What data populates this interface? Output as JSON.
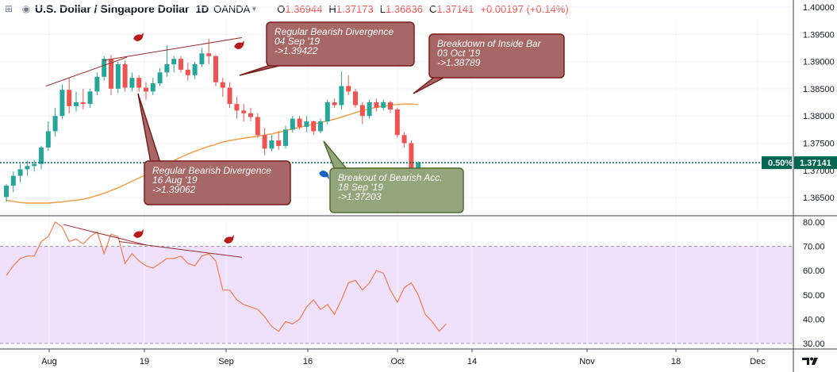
{
  "header": {
    "title": "U.S. Dollar / Singapore Dollar",
    "interval": "1D",
    "broker": "OANDA",
    "open_label": "O",
    "open": "1.36944",
    "high_label": "H",
    "high": "1.37173",
    "low_label": "L",
    "low": "1.36836",
    "close_label": "C",
    "close": "1.37141",
    "change": "+0.00197 (+0.14%)"
  },
  "icons": [
    "expand-icon",
    "eye-icon",
    "chevron-down-icon",
    "bear-icon",
    "bull-icon",
    "tradingview-logo"
  ],
  "colors": {
    "up": "#26a69a",
    "down": "#ef5350",
    "ma": "#f59a3d",
    "rsi": "#f57c4b",
    "rsi_band": "#efe0fb",
    "trendline": "#9c2a2a",
    "price_line": "#006652"
  },
  "chart_data": [
    {
      "type": "candlestick",
      "x_ticks": [
        "Aug",
        "19",
        "Sep",
        "16",
        "Oct",
        "14",
        "Nov",
        "18",
        "Dec"
      ],
      "y_ticks": [
        "1.40000",
        "1.39500",
        "1.39000",
        "1.38500",
        "1.38000",
        "1.37500",
        "1.37000",
        "1.36500"
      ],
      "ylim": [
        1.3615,
        1.4
      ],
      "candles": [
        {
          "o": 1.3651,
          "h": 1.3675,
          "l": 1.3642,
          "c": 1.3672
        },
        {
          "o": 1.3672,
          "h": 1.3698,
          "l": 1.366,
          "c": 1.369
        },
        {
          "o": 1.369,
          "h": 1.3712,
          "l": 1.3678,
          "c": 1.3702
        },
        {
          "o": 1.3702,
          "h": 1.3718,
          "l": 1.369,
          "c": 1.3708
        },
        {
          "o": 1.3708,
          "h": 1.372,
          "l": 1.3698,
          "c": 1.3712
        },
        {
          "o": 1.3712,
          "h": 1.3745,
          "l": 1.3702,
          "c": 1.3742
        },
        {
          "o": 1.3742,
          "h": 1.379,
          "l": 1.3736,
          "c": 1.3772
        },
        {
          "o": 1.3772,
          "h": 1.3815,
          "l": 1.3762,
          "c": 1.38
        },
        {
          "o": 1.38,
          "h": 1.3858,
          "l": 1.3795,
          "c": 1.3848
        },
        {
          "o": 1.3848,
          "h": 1.387,
          "l": 1.3805,
          "c": 1.3818
        },
        {
          "o": 1.3818,
          "h": 1.3845,
          "l": 1.3808,
          "c": 1.3825
        },
        {
          "o": 1.3825,
          "h": 1.385,
          "l": 1.3812,
          "c": 1.3822
        },
        {
          "o": 1.3822,
          "h": 1.385,
          "l": 1.3815,
          "c": 1.3845
        },
        {
          "o": 1.3845,
          "h": 1.388,
          "l": 1.3838,
          "c": 1.3872
        },
        {
          "o": 1.3872,
          "h": 1.391,
          "l": 1.3865,
          "c": 1.3905
        },
        {
          "o": 1.3905,
          "h": 1.3912,
          "l": 1.3838,
          "c": 1.385
        },
        {
          "o": 1.385,
          "h": 1.39,
          "l": 1.3842,
          "c": 1.3895
        },
        {
          "o": 1.3895,
          "h": 1.3902,
          "l": 1.3845,
          "c": 1.3852
        },
        {
          "o": 1.3852,
          "h": 1.388,
          "l": 1.3845,
          "c": 1.387
        },
        {
          "o": 1.387,
          "h": 1.3875,
          "l": 1.3845,
          "c": 1.3852
        },
        {
          "o": 1.3852,
          "h": 1.3862,
          "l": 1.383,
          "c": 1.3845
        },
        {
          "o": 1.3845,
          "h": 1.387,
          "l": 1.3838,
          "c": 1.386
        },
        {
          "o": 1.386,
          "h": 1.3888,
          "l": 1.3855,
          "c": 1.388
        },
        {
          "o": 1.388,
          "h": 1.393,
          "l": 1.3872,
          "c": 1.3895
        },
        {
          "o": 1.3895,
          "h": 1.391,
          "l": 1.388,
          "c": 1.3905
        },
        {
          "o": 1.3905,
          "h": 1.391,
          "l": 1.388,
          "c": 1.3885
        },
        {
          "o": 1.3885,
          "h": 1.3898,
          "l": 1.3865,
          "c": 1.3875
        },
        {
          "o": 1.3875,
          "h": 1.39,
          "l": 1.3868,
          "c": 1.3895
        },
        {
          "o": 1.3895,
          "h": 1.3925,
          "l": 1.389,
          "c": 1.3915
        },
        {
          "o": 1.3915,
          "h": 1.3942,
          "l": 1.3895,
          "c": 1.391
        },
        {
          "o": 1.391,
          "h": 1.3912,
          "l": 1.3855,
          "c": 1.3862
        },
        {
          "o": 1.3862,
          "h": 1.387,
          "l": 1.3835,
          "c": 1.3852
        },
        {
          "o": 1.3852,
          "h": 1.3862,
          "l": 1.3815,
          "c": 1.3822
        },
        {
          "o": 1.3822,
          "h": 1.3835,
          "l": 1.3795,
          "c": 1.381
        },
        {
          "o": 1.381,
          "h": 1.3822,
          "l": 1.379,
          "c": 1.3805
        },
        {
          "o": 1.3805,
          "h": 1.3815,
          "l": 1.379,
          "c": 1.3798
        },
        {
          "o": 1.3798,
          "h": 1.3805,
          "l": 1.376,
          "c": 1.3765
        },
        {
          "o": 1.3765,
          "h": 1.3778,
          "l": 1.3728,
          "c": 1.374
        },
        {
          "o": 1.374,
          "h": 1.3765,
          "l": 1.3735,
          "c": 1.3755
        },
        {
          "o": 1.3755,
          "h": 1.3772,
          "l": 1.3738,
          "c": 1.3745
        },
        {
          "o": 1.3745,
          "h": 1.3782,
          "l": 1.374,
          "c": 1.3775
        },
        {
          "o": 1.3775,
          "h": 1.38,
          "l": 1.377,
          "c": 1.3795
        },
        {
          "o": 1.3795,
          "h": 1.38,
          "l": 1.3775,
          "c": 1.378
        },
        {
          "o": 1.378,
          "h": 1.38,
          "l": 1.377,
          "c": 1.379
        },
        {
          "o": 1.379,
          "h": 1.3792,
          "l": 1.3765,
          "c": 1.3772
        },
        {
          "o": 1.3772,
          "h": 1.3795,
          "l": 1.3768,
          "c": 1.379
        },
        {
          "o": 1.379,
          "h": 1.383,
          "l": 1.3785,
          "c": 1.3825
        },
        {
          "o": 1.3825,
          "h": 1.3832,
          "l": 1.3815,
          "c": 1.382
        },
        {
          "o": 1.382,
          "h": 1.3882,
          "l": 1.3812,
          "c": 1.3855
        },
        {
          "o": 1.3855,
          "h": 1.3875,
          "l": 1.3838,
          "c": 1.3845
        },
        {
          "o": 1.3845,
          "h": 1.385,
          "l": 1.3815,
          "c": 1.382
        },
        {
          "o": 1.382,
          "h": 1.3825,
          "l": 1.3785,
          "c": 1.38
        },
        {
          "o": 1.38,
          "h": 1.383,
          "l": 1.3795,
          "c": 1.3825
        },
        {
          "o": 1.3825,
          "h": 1.3832,
          "l": 1.3808,
          "c": 1.3815
        },
        {
          "o": 1.3815,
          "h": 1.383,
          "l": 1.381,
          "c": 1.3825
        },
        {
          "o": 1.3825,
          "h": 1.3828,
          "l": 1.3805,
          "c": 1.3812
        },
        {
          "o": 1.3812,
          "h": 1.3815,
          "l": 1.376,
          "c": 1.3765
        },
        {
          "o": 1.3765,
          "h": 1.377,
          "l": 1.3742,
          "c": 1.375
        },
        {
          "o": 1.375,
          "h": 1.3755,
          "l": 1.3685,
          "c": 1.3694
        },
        {
          "o": 1.3694,
          "h": 1.3717,
          "l": 1.3684,
          "c": 1.3714
        }
      ],
      "ma": [
        1.3645,
        1.3643,
        1.3641,
        1.364,
        1.364,
        1.364,
        1.364,
        1.3641,
        1.3642,
        1.3644,
        1.3645,
        1.3647,
        1.365,
        1.3654,
        1.3658,
        1.3663,
        1.3668,
        1.3674,
        1.368,
        1.3686,
        1.3692,
        1.3698,
        1.3705,
        1.3712,
        1.3718,
        1.3724,
        1.373,
        1.3735,
        1.374,
        1.3744,
        1.3748,
        1.3752,
        1.3755,
        1.3757,
        1.3759,
        1.3761,
        1.3763,
        1.3765,
        1.3767,
        1.377,
        1.3773,
        1.3776,
        1.3779,
        1.3782,
        1.3785,
        1.3788,
        1.3791,
        1.3794,
        1.3798,
        1.3802,
        1.3806,
        1.381,
        1.3813,
        1.3816,
        1.3818,
        1.382,
        1.3821,
        1.3822,
        1.3822,
        1.3821
      ],
      "current_price": "1.37141",
      "current_change_tag": "0.50%",
      "annotations": [
        {
          "title": "Regular Bearish Divergence",
          "date": "16 Aug '19",
          "value": "->1.39062",
          "kind": "bearish"
        },
        {
          "title": "Regular Bearish Divergence",
          "date": "04 Sep '19",
          "value": "->1.39422",
          "kind": "bearish"
        },
        {
          "title": "Breakdown of Inside Bar",
          "date": "03 Oct '19",
          "value": "->1.38789",
          "kind": "bearish"
        },
        {
          "title": "Breakout of Bearish Acc.",
          "date": "18 Sep '19",
          "value": "->1.37203",
          "kind": "bullish"
        }
      ]
    },
    {
      "type": "line",
      "y_ticks": [
        "80.00",
        "70.00",
        "60.00",
        "50.00",
        "40.00",
        "30.00"
      ],
      "ylim": [
        28,
        84
      ],
      "band": [
        30,
        70
      ],
      "values": [
        58,
        62,
        65,
        66,
        66,
        72,
        74,
        80,
        78,
        72,
        73,
        71,
        74,
        76,
        67,
        75,
        74,
        63,
        67,
        64,
        62,
        61,
        63,
        65,
        65,
        66,
        63,
        62,
        66,
        67,
        64,
        52,
        52,
        48,
        46,
        45,
        44,
        41,
        37,
        35,
        39,
        38,
        40,
        45,
        48,
        44,
        46,
        42,
        48,
        55,
        56,
        52,
        55,
        60,
        59,
        52,
        47,
        53,
        55,
        50,
        42,
        39,
        35,
        38
      ]
    }
  ]
}
